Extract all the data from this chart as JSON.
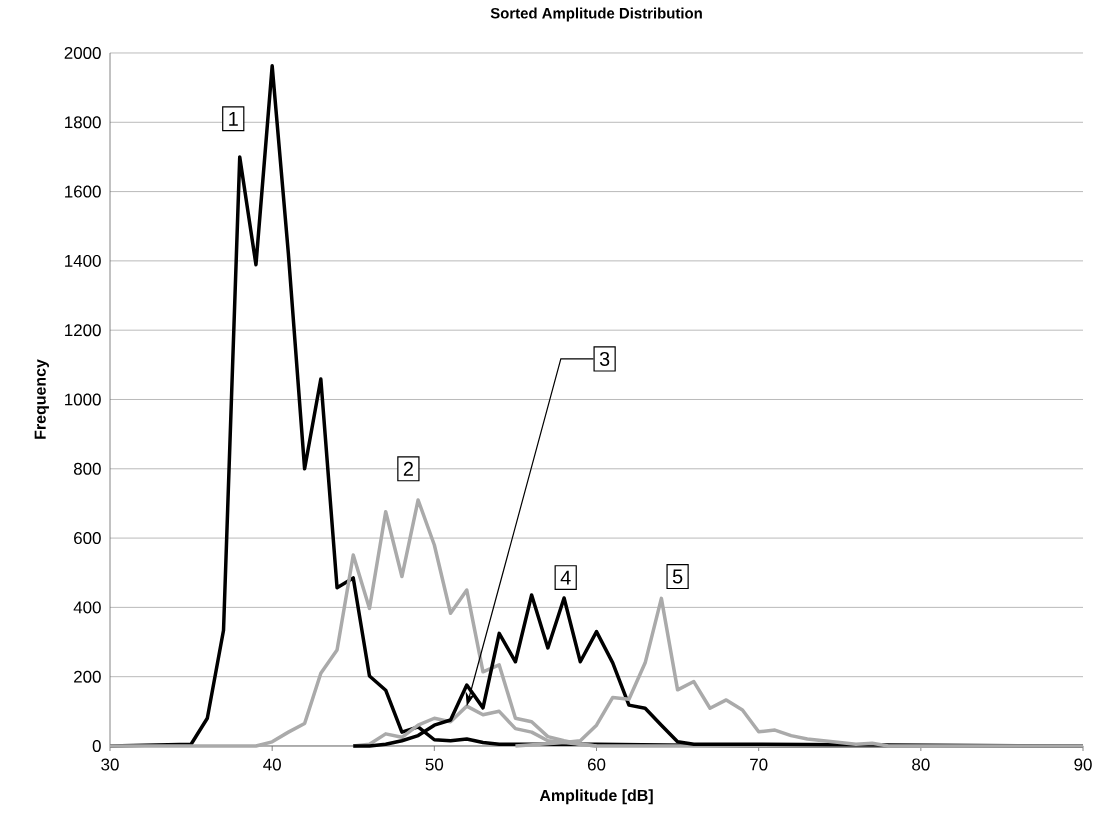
{
  "chart_data": {
    "type": "line",
    "title": "Sorted Amplitude Distribution",
    "xlabel": "Amplitude [dB]",
    "ylabel": "Frequency",
    "xlim": [
      30,
      90
    ],
    "xticks": [
      30,
      40,
      50,
      60,
      70,
      80,
      90
    ],
    "ylim": [
      0,
      2000
    ],
    "yticks": [
      0,
      200,
      400,
      600,
      800,
      1000,
      1200,
      1400,
      1600,
      1800,
      2000
    ],
    "grid": "y",
    "series": [
      {
        "name": "1",
        "color": "#000000",
        "x": [
          30,
          35,
          36,
          37,
          38,
          39,
          40,
          41,
          42,
          43,
          44,
          45,
          46,
          47,
          48,
          49,
          50,
          51,
          52,
          53,
          54,
          60,
          70,
          90
        ],
        "values": [
          0,
          5,
          80,
          334,
          1700,
          1389,
          1963,
          1420,
          800,
          1059,
          457,
          485,
          202,
          161,
          40,
          55,
          18,
          15,
          20,
          10,
          5,
          5,
          0,
          0
        ]
      },
      {
        "name": "2",
        "color": "#aaaaaa",
        "x": [
          30,
          39,
          40,
          41,
          42,
          43,
          44,
          45,
          46,
          47,
          48,
          49,
          50,
          51,
          52,
          53,
          54,
          55,
          56,
          57,
          58,
          59,
          60,
          90
        ],
        "values": [
          0,
          0,
          12,
          40,
          65,
          210,
          277,
          551,
          397,
          676,
          489,
          710,
          580,
          383,
          450,
          214,
          234,
          80,
          70,
          27,
          15,
          5,
          0,
          0
        ]
      },
      {
        "name": "3",
        "color": "#aaaaaa",
        "x": [
          45,
          46,
          47,
          48,
          49,
          50,
          51,
          52,
          53,
          54,
          55,
          56,
          57,
          58,
          60
        ],
        "values": [
          0,
          5,
          35,
          25,
          60,
          80,
          70,
          115,
          90,
          100,
          50,
          40,
          15,
          10,
          0
        ]
      },
      {
        "name": "4",
        "color": "#000000",
        "x": [
          45,
          46,
          47,
          48,
          49,
          50,
          51,
          52,
          53,
          54,
          55,
          56,
          57,
          58,
          59,
          60,
          61,
          62,
          63,
          64,
          65,
          66,
          70,
          90
        ],
        "values": [
          0,
          0,
          5,
          15,
          30,
          60,
          75,
          176,
          110,
          325,
          243,
          436,
          283,
          427,
          243,
          330,
          240,
          118,
          109,
          60,
          12,
          5,
          5,
          0
        ]
      },
      {
        "name": "5",
        "color": "#aaaaaa",
        "x": [
          55,
          58,
          59,
          60,
          61,
          62,
          63,
          64,
          65,
          66,
          67,
          68,
          69,
          70,
          71,
          72,
          73,
          74,
          75,
          76,
          77,
          78,
          90
        ],
        "values": [
          0,
          10,
          15,
          60,
          140,
          135,
          240,
          426,
          162,
          186,
          109,
          133,
          104,
          41,
          46,
          30,
          20,
          15,
          10,
          5,
          8,
          0,
          0
        ]
      }
    ]
  }
}
